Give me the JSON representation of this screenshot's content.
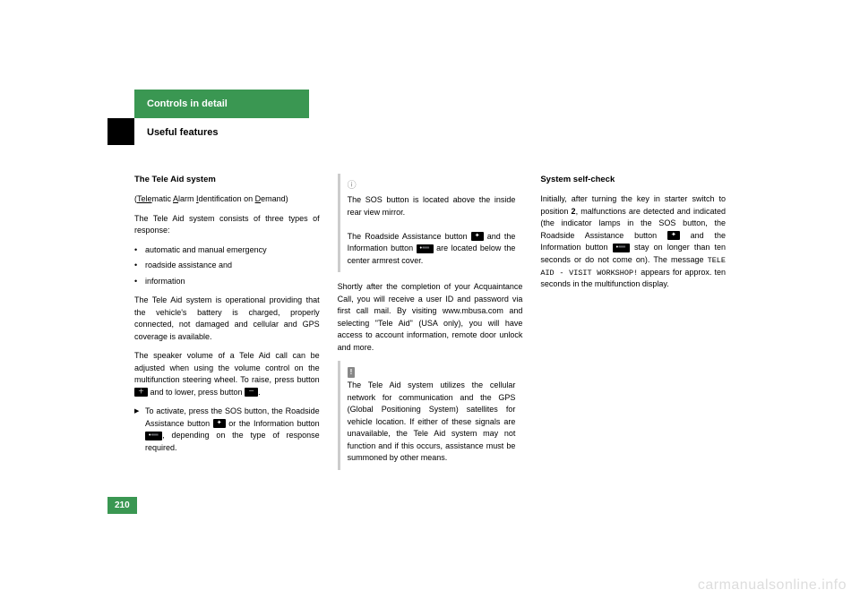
{
  "header": {
    "section_title": "Controls in detail",
    "subsection_title": "Useful features"
  },
  "page_number": "210",
  "watermark": "carmanualsonline.info",
  "col1": {
    "heading": "The Tele Aid system",
    "acronym_line": "(Telematic Alarm Identification on Demand)",
    "intro": "The Tele Aid system consists of three types of response:",
    "bullets": [
      "automatic and manual emergency",
      "roadside assistance and",
      "information"
    ],
    "para1": "The Tele Aid system is operational providing that the vehicle's battery is charged, properly connected, not damaged and cellular and GPS coverage is available.",
    "para2a": "The speaker volume of a Tele Aid call can be adjusted when using the volume control on the multifunction steering wheel. To raise, press button ",
    "para2b": " and to lower, press button ",
    "para2c": ".",
    "action_a": "To activate, press the SOS button, the Roadside Assistance button ",
    "action_b": " or the Information button ",
    "action_c": ", depending on the type of response required."
  },
  "col2": {
    "note1a": "The SOS button is located above the inside rear view mirror.",
    "note1b_a": "The Roadside Assistance button ",
    "note1b_b": " and the Information button ",
    "note1b_c": " are located below the center armrest cover.",
    "para1": "Shortly after the completion of your Acquaintance Call, you will receive a user ID and password via first call mail. By visiting www.mbusa.com and selecting \"Tele Aid\" (USA only), you will have access to account information, remote door unlock and more.",
    "note2": "The Tele Aid system utilizes the cellular network for communication and the GPS (Global Positioning System) satellites for vehicle location. If either of these signals are unavailable, the Tele Aid system may not function and if this occurs, assistance must be summoned by other means."
  },
  "col3": {
    "heading": "System self-check",
    "para_a": "Initially, after turning the key in starter switch to position ",
    "para_b": "2",
    "para_c": ", malfunctions are detected and indicated (the indicator lamps in the SOS button, the Roadside Assistance button ",
    "para_d": " and the Information button ",
    "para_e": " stay on longer than ten seconds or do not come on). The message ",
    "mono_msg": "TELE AID - VISIT WORKSHOP!",
    "para_f": " appears for approx. ten seconds in the multifunction display."
  },
  "icons": {
    "plus": "＋",
    "minus": "－",
    "wrench": "✦",
    "info": "•➖"
  }
}
